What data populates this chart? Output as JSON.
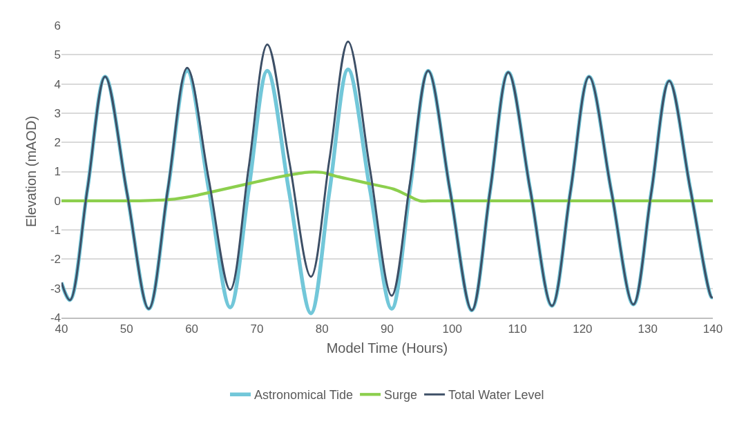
{
  "chart_data": {
    "type": "line",
    "xlabel": "Model Time (Hours)",
    "ylabel": "Elevation (mAOD)",
    "xlim": [
      40,
      140
    ],
    "xticks": [
      40,
      50,
      60,
      70,
      80,
      90,
      100,
      110,
      120,
      130,
      140
    ],
    "ylim": [
      -4,
      6
    ],
    "yticks": [
      -4,
      -3,
      -2,
      -1,
      0,
      1,
      2,
      3,
      4,
      5,
      6
    ],
    "grid": "y",
    "legend": "bottom",
    "marker": "none",
    "line_style": "solid",
    "series": [
      {
        "name": "Astronomical Tide",
        "color": "#72c7d9",
        "x": [
          40,
          41.3,
          44,
          46.7,
          50.05,
          53.4,
          56.35,
          59.3,
          62.6,
          65.9,
          68.75,
          71.6,
          74.95,
          78.3,
          81.15,
          84,
          87.35,
          90.7,
          93.5,
          96.3,
          99.65,
          103,
          105.8,
          108.6,
          111.95,
          115.3,
          118.15,
          121,
          124.4,
          127.8,
          130.55,
          133.3,
          136.55,
          139.8,
          140
        ],
        "values": [
          -2.8,
          -3.4,
          0.43,
          4.25,
          0.28,
          -3.7,
          0.38,
          4.45,
          0.4,
          -3.65,
          0.4,
          4.45,
          0.3,
          -3.85,
          0.33,
          4.5,
          0.4,
          -3.7,
          0.38,
          4.45,
          0.35,
          -3.75,
          0.33,
          4.4,
          0.4,
          -3.6,
          0.33,
          4.25,
          0.35,
          -3.55,
          0.28,
          4.1,
          0.4,
          -3.3,
          -3.3
        ]
      },
      {
        "name": "Surge",
        "color": "#8ccf4d",
        "x": [
          40,
          46,
          52,
          55,
          57,
          60,
          63,
          67,
          70,
          73,
          76,
          78,
          80,
          82,
          85,
          88,
          91,
          93,
          95,
          97,
          105,
          115,
          125,
          135,
          140
        ],
        "values": [
          0,
          0,
          0,
          0.02,
          0.05,
          0.15,
          0.3,
          0.5,
          0.65,
          0.8,
          0.92,
          0.98,
          0.97,
          0.85,
          0.7,
          0.55,
          0.4,
          0.2,
          0,
          0,
          0,
          0,
          0,
          0,
          0
        ]
      },
      {
        "name": "Total Water Level",
        "color": "#3d4f66",
        "x": [
          40,
          41.3,
          44,
          46.7,
          50.05,
          53.4,
          56.35,
          59.3,
          62.6,
          65.9,
          68.75,
          71.6,
          74.95,
          78.3,
          81.15,
          84,
          87.35,
          90.7,
          93.5,
          96.3,
          99.65,
          103,
          105.8,
          108.6,
          111.95,
          115.3,
          118.15,
          121,
          124.4,
          127.8,
          130.55,
          133.3,
          136.55,
          139.8,
          140
        ],
        "values": [
          -2.8,
          -3.4,
          0.43,
          4.25,
          0.28,
          -3.7,
          0.43,
          4.55,
          0.75,
          -3.05,
          1.15,
          5.35,
          1.38,
          -2.6,
          1.43,
          5.45,
          1.1,
          -3.25,
          0.6,
          4.45,
          0.35,
          -3.75,
          0.33,
          4.4,
          0.4,
          -3.6,
          0.33,
          4.25,
          0.35,
          -3.55,
          0.28,
          4.1,
          0.4,
          -3.3,
          -3.3
        ]
      }
    ]
  }
}
